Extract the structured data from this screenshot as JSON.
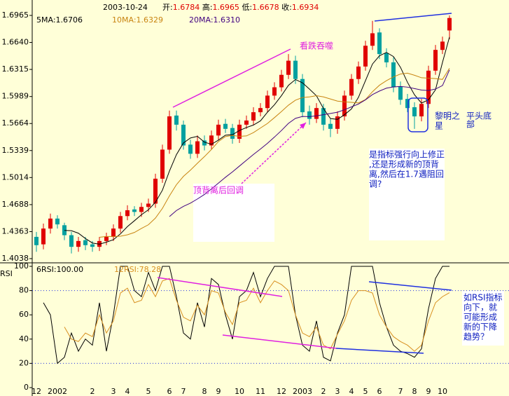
{
  "chart_data": [
    {
      "type": "candlestick",
      "date": "2003-10-24",
      "ohlc_labels": [
        "开:",
        "高:",
        "低:",
        "收:"
      ],
      "categories": [
        "12",
        null,
        null,
        "2002",
        null,
        null,
        null,
        null,
        "2",
        null,
        null,
        "3",
        null,
        "4",
        null,
        null,
        "5",
        null,
        null,
        "6",
        null,
        "7",
        null,
        null,
        "8",
        null,
        "9",
        null,
        null,
        "10",
        null,
        null,
        "11",
        null,
        null,
        "12",
        null,
        null,
        "2003",
        null,
        null,
        "2",
        null,
        "3",
        null,
        "4",
        null,
        "5",
        null,
        "6",
        null,
        null,
        "7",
        null,
        "8",
        null,
        "9",
        null,
        "10",
        null
      ],
      "open": [
        1.43,
        1.421,
        1.44,
        1.452,
        1.444,
        1.432,
        1.418,
        1.426,
        1.421,
        1.418,
        1.425,
        1.43,
        1.44,
        1.455,
        1.463,
        1.46,
        1.466,
        1.47,
        1.5,
        1.535,
        1.576,
        1.565,
        1.541,
        1.53,
        1.546,
        1.54,
        1.552,
        1.566,
        1.561,
        1.548,
        1.565,
        1.57,
        1.58,
        1.585,
        1.6,
        1.61,
        1.625,
        1.642,
        1.62,
        1.581,
        1.572,
        1.585,
        1.566,
        1.56,
        1.575,
        1.6,
        1.62,
        1.635,
        1.66,
        1.676,
        1.651,
        1.64,
        1.611,
        1.596,
        1.586,
        1.575,
        1.59,
        1.63,
        1.655,
        1.6784
      ],
      "high": [
        1.436,
        1.446,
        1.458,
        1.456,
        1.447,
        1.436,
        1.43,
        1.43,
        1.425,
        1.43,
        1.435,
        1.445,
        1.46,
        1.468,
        1.467,
        1.471,
        1.476,
        1.506,
        1.541,
        1.582,
        1.582,
        1.57,
        1.547,
        1.552,
        1.552,
        1.558,
        1.571,
        1.572,
        1.566,
        1.571,
        1.576,
        1.586,
        1.591,
        1.606,
        1.616,
        1.631,
        1.65,
        1.648,
        1.626,
        1.588,
        1.591,
        1.59,
        1.572,
        1.581,
        1.606,
        1.626,
        1.641,
        1.666,
        1.69,
        1.681,
        1.657,
        1.646,
        1.617,
        1.602,
        1.592,
        1.596,
        1.636,
        1.661,
        1.671,
        1.6965
      ],
      "low": [
        1.412,
        1.415,
        1.434,
        1.44,
        1.426,
        1.41,
        1.412,
        1.414,
        1.412,
        1.413,
        1.42,
        1.425,
        1.435,
        1.45,
        1.455,
        1.454,
        1.46,
        1.465,
        1.495,
        1.53,
        1.558,
        1.535,
        1.524,
        1.525,
        1.534,
        1.535,
        1.546,
        1.555,
        1.542,
        1.543,
        1.56,
        1.565,
        1.575,
        1.58,
        1.595,
        1.605,
        1.62,
        1.614,
        1.574,
        1.565,
        1.567,
        1.558,
        1.55,
        1.554,
        1.57,
        1.595,
        1.614,
        1.63,
        1.655,
        1.644,
        1.634,
        1.604,
        1.589,
        1.58,
        1.56,
        1.569,
        1.585,
        1.625,
        1.65,
        1.6678
      ],
      "close": [
        1.42,
        1.44,
        1.452,
        1.445,
        1.432,
        1.418,
        1.425,
        1.42,
        1.418,
        1.425,
        1.43,
        1.44,
        1.455,
        1.462,
        1.46,
        1.466,
        1.47,
        1.5,
        1.535,
        1.575,
        1.565,
        1.54,
        1.53,
        1.545,
        1.54,
        1.552,
        1.565,
        1.56,
        1.548,
        1.565,
        1.57,
        1.58,
        1.585,
        1.6,
        1.61,
        1.625,
        1.642,
        1.62,
        1.58,
        1.572,
        1.585,
        1.565,
        1.56,
        1.575,
        1.6,
        1.62,
        1.635,
        1.66,
        1.675,
        1.65,
        1.64,
        1.61,
        1.595,
        1.585,
        1.575,
        1.59,
        1.63,
        1.655,
        1.665,
        1.6934
      ],
      "up_color": "#e00000",
      "down_color": "#00a0a0",
      "series": [
        {
          "name": "5MA:1.6706",
          "color": "#000000",
          "values": [
            null,
            null,
            null,
            null,
            1.4378,
            1.4374,
            1.4344,
            1.428,
            1.4226,
            1.4212,
            1.4236,
            1.4266,
            1.4336,
            1.4424,
            1.4494,
            1.4566,
            1.4626,
            1.4716,
            1.4862,
            1.5092,
            1.529,
            1.543,
            1.549,
            1.551,
            1.544,
            1.5414,
            1.5464,
            1.5524,
            1.553,
            1.558,
            1.5616,
            1.5646,
            1.5696,
            1.58,
            1.589,
            1.6,
            1.6124,
            1.6194,
            1.6154,
            1.6078,
            1.5998,
            1.5844,
            1.5724,
            1.5714,
            1.577,
            1.584,
            1.598,
            1.618,
            1.638,
            1.648,
            1.652,
            1.647,
            1.634,
            1.616,
            1.601,
            1.591,
            1.595,
            1.607,
            1.64,
            1.6706
          ]
        },
        {
          "name": "10MA:1.6329",
          "color": "#c88410",
          "values": [
            null,
            null,
            null,
            null,
            null,
            null,
            null,
            null,
            null,
            1.4295,
            1.4305,
            1.4305,
            1.4308,
            1.4325,
            1.4353,
            1.4401,
            1.4446,
            1.4526,
            1.4643,
            1.4793,
            1.4928,
            1.5028,
            1.5103,
            1.5186,
            1.5266,
            1.5352,
            1.5447,
            1.5507,
            1.552,
            1.551,
            1.5515,
            1.5555,
            1.561,
            1.5665,
            1.5735,
            1.5808,
            1.5885,
            1.5945,
            1.5977,
            1.5984,
            1.5999,
            1.5984,
            1.5959,
            1.5934,
            1.5924,
            1.5919,
            1.5912,
            1.5952,
            1.6047,
            1.6125,
            1.618,
            1.6225,
            1.626,
            1.627,
            1.6245,
            1.6215,
            1.621,
            1.6205,
            1.6195,
            1.6329
          ]
        },
        {
          "name": "20MA:1.6310",
          "color": "#400080",
          "values": [
            null,
            null,
            null,
            null,
            null,
            null,
            null,
            null,
            null,
            null,
            null,
            null,
            null,
            null,
            null,
            null,
            null,
            null,
            null,
            1.4544,
            1.4617,
            1.4667,
            1.4706,
            1.4756,
            1.481,
            1.4877,
            1.4947,
            1.5017,
            1.5082,
            1.5152,
            1.5222,
            1.5292,
            1.5357,
            1.5426,
            1.5501,
            1.558,
            1.5666,
            1.5726,
            1.5749,
            1.5747,
            1.5757,
            1.577,
            1.5785,
            1.58,
            1.583,
            1.5864,
            1.5899,
            1.5949,
            1.6012,
            1.6055,
            1.609,
            1.6105,
            1.611,
            1.6102,
            1.6085,
            1.6067,
            1.6061,
            1.6079,
            1.6121,
            1.631
          ]
        }
      ],
      "ylim": [
        1.4038,
        1.6965
      ],
      "yticks": [
        1.6965,
        {
          "value": 1.664,
          "label": "1.6640"
        },
        1.6315,
        1.5989,
        1.5664,
        1.5339,
        1.5014,
        1.4688,
        1.4363,
        1.4038
      ]
    },
    {
      "type": "line",
      "ylabel": "RSI",
      "series": [
        {
          "name": "6RSI:100.00",
          "color": "#000000",
          "values": [
            null,
            70,
            60,
            20,
            25,
            45,
            30,
            40,
            35,
            70,
            30,
            60,
            100,
            100,
            80,
            75,
            95,
            80,
            100,
            100,
            75,
            45,
            40,
            70,
            50,
            90,
            85,
            60,
            40,
            75,
            80,
            95,
            75,
            90,
            100,
            100,
            100,
            60,
            35,
            30,
            55,
            25,
            22,
            45,
            60,
            100,
            100,
            100,
            100,
            70,
            50,
            35,
            30,
            28,
            25,
            32,
            65,
            90,
            100,
            100
          ]
        },
        {
          "name": "12RSI:78.28",
          "color": "#d89020",
          "values": [
            null,
            null,
            null,
            null,
            50,
            40,
            38,
            45,
            42,
            60,
            45,
            55,
            78,
            82,
            70,
            72,
            85,
            75,
            88,
            90,
            72,
            58,
            55,
            68,
            60,
            80,
            78,
            62,
            52,
            70,
            72,
            82,
            70,
            80,
            88,
            85,
            80,
            60,
            45,
            42,
            50,
            35,
            32,
            44,
            55,
            72,
            80,
            80,
            78,
            60,
            50,
            42,
            38,
            35,
            30,
            35,
            55,
            70,
            75,
            78.28
          ]
        }
      ],
      "ylim": [
        0,
        100
      ],
      "yticks": [
        100,
        80,
        60,
        40,
        20,
        0
      ],
      "gridlines": [
        80,
        20
      ]
    }
  ],
  "annotations": {
    "engulf": "看跌吞噬",
    "pullback": "顶背离后回调",
    "question": [
      "是指标强行向上修正",
      ",还是形成新的顶背",
      "离,然后在1.7遇阻回",
      "调?"
    ],
    "morning_star": [
      "黎明之",
      "星"
    ],
    "flat_bottom": [
      "平头底",
      "部"
    ],
    "rsi_note": [
      "如RSI指标",
      "向下，就",
      "可能形成",
      "新的下降",
      "趋势？"
    ]
  }
}
